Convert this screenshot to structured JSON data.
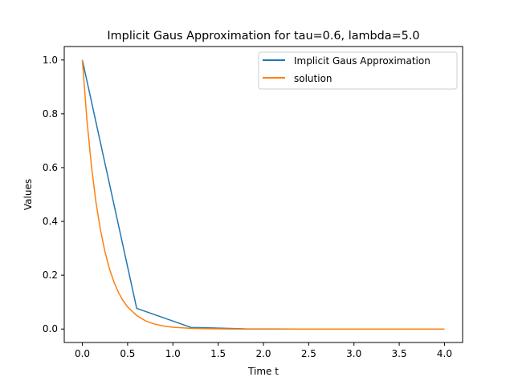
{
  "chart_data": {
    "type": "line",
    "title": "Implicit Gaus Approximation for tau=0.6, lambda=5.0",
    "xlabel": "Time t",
    "ylabel": "Values",
    "xlim": [
      -0.2,
      4.2
    ],
    "ylim": [
      -0.05,
      1.05
    ],
    "xticks": [
      0.0,
      0.5,
      1.0,
      1.5,
      2.0,
      2.5,
      3.0,
      3.5,
      4.0
    ],
    "xtick_labels": [
      "0.0",
      "0.5",
      "1.0",
      "1.5",
      "2.0",
      "2.5",
      "3.0",
      "3.5",
      "4.0"
    ],
    "yticks": [
      0.0,
      0.2,
      0.4,
      0.6,
      0.8,
      1.0
    ],
    "ytick_labels": [
      "0.0",
      "0.2",
      "0.4",
      "0.6",
      "0.8",
      "1.0"
    ],
    "grid": false,
    "legend_position": "top-right",
    "series": [
      {
        "name": "Implicit Gaus Approximation",
        "color": "#1f77b4",
        "x": [
          0.0,
          0.6,
          1.2,
          1.8,
          2.4,
          3.0,
          3.6,
          4.0
        ],
        "y": [
          1.0,
          0.077,
          0.006,
          0.0005,
          4e-05,
          0.0,
          0.0,
          0.0
        ]
      },
      {
        "name": "solution",
        "color": "#ff7f0e",
        "x": [
          0.0,
          0.05,
          0.1,
          0.15,
          0.2,
          0.25,
          0.3,
          0.35,
          0.4,
          0.45,
          0.5,
          0.6,
          0.7,
          0.8,
          0.9,
          1.0,
          1.2,
          1.4,
          1.6,
          1.8,
          2.0,
          2.5,
          3.0,
          3.5,
          4.0
        ],
        "y": [
          1.0,
          0.779,
          0.607,
          0.472,
          0.368,
          0.287,
          0.223,
          0.174,
          0.135,
          0.105,
          0.082,
          0.05,
          0.03,
          0.018,
          0.011,
          0.0067,
          0.0025,
          0.0009,
          0.0003,
          0.0001,
          5e-05,
          0.0,
          0.0,
          0.0,
          0.0
        ]
      }
    ]
  }
}
